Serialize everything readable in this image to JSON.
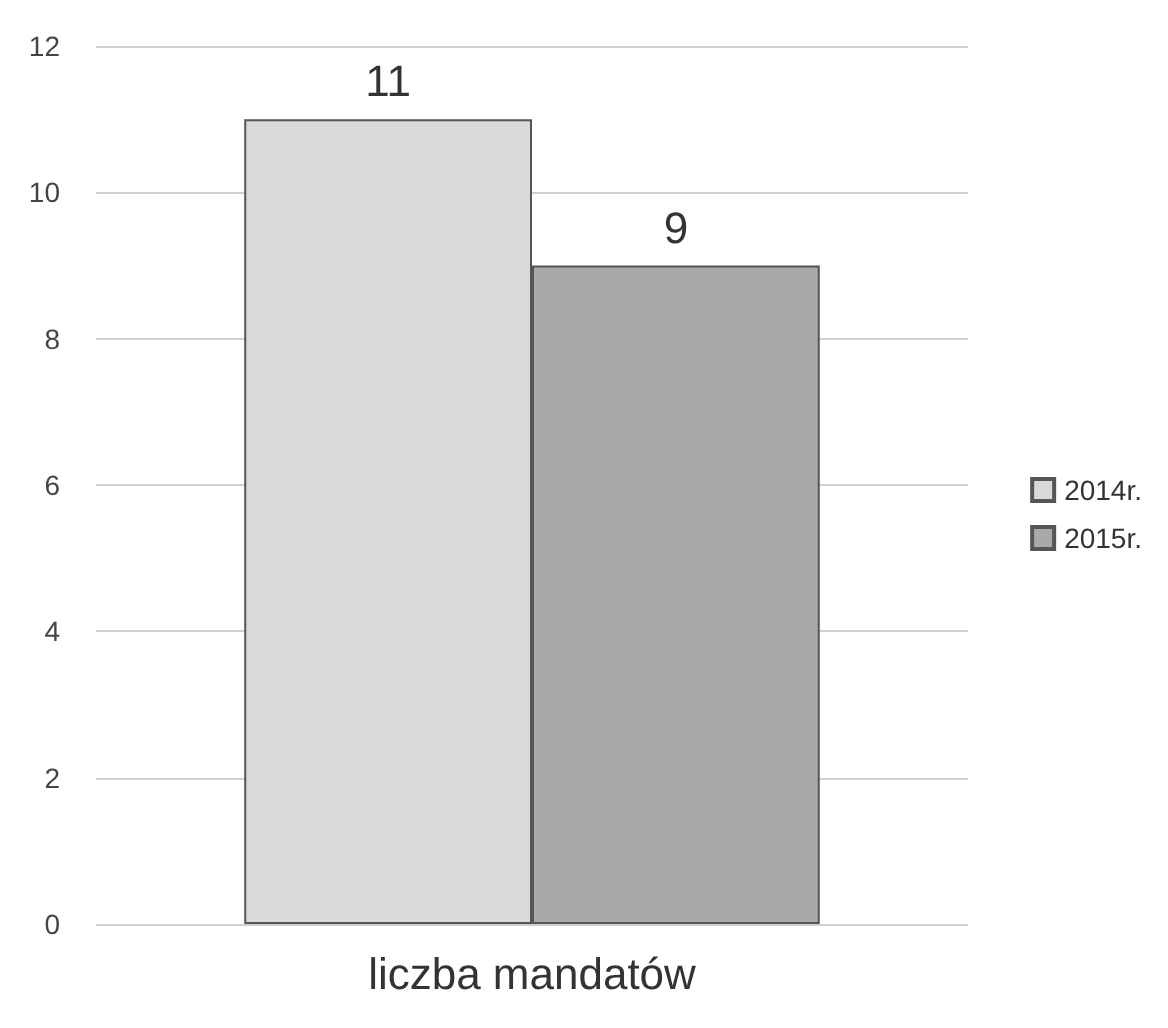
{
  "chart_data": {
    "type": "bar",
    "categories": [
      "liczba mandatów"
    ],
    "series": [
      {
        "name": "2014r.",
        "color": "#d9d9db",
        "values": [
          11
        ]
      },
      {
        "name": "2015r.",
        "color": "#a9a9ab",
        "values": [
          9
        ]
      }
    ],
    "ylim": [
      0,
      12
    ],
    "yticks": [
      0,
      2,
      4,
      6,
      8,
      10,
      12
    ],
    "grid": "y",
    "legend": "right",
    "data_labels": true
  }
}
